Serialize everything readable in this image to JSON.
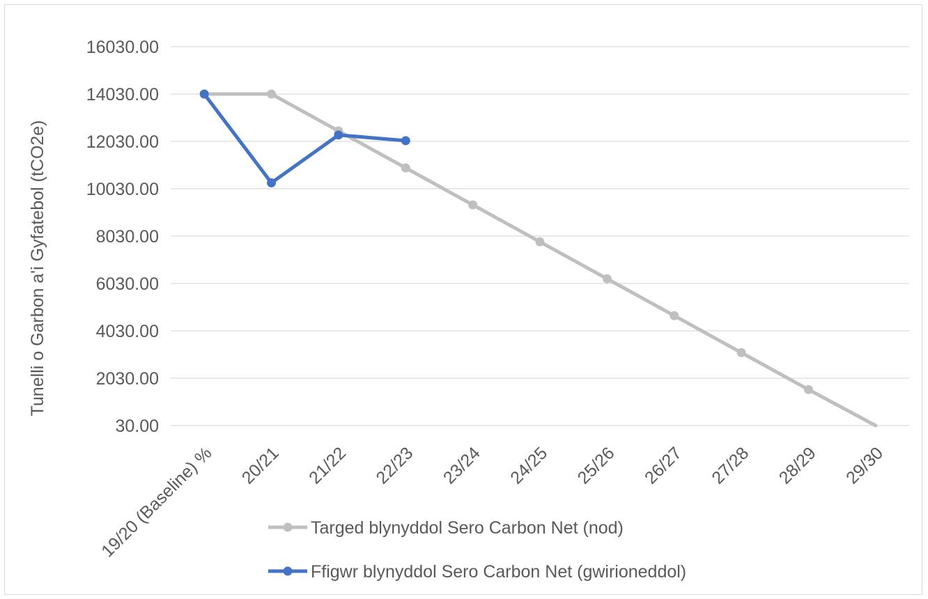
{
  "chart_data": {
    "type": "line",
    "ylabel": "Tunelli o Garbon a'i Gyfatebol (tCO2e)",
    "xlabel": "",
    "categories": [
      "19/20 (Baseline) %",
      "20/21",
      "21/22",
      "22/23",
      "23/24",
      "24/25",
      "25/26",
      "26/27",
      "27/28",
      "28/29",
      "29/30"
    ],
    "yticks": [
      "30.00",
      "2030.00",
      "4030.00",
      "6030.00",
      "8030.00",
      "10030.00",
      "12030.00",
      "14030.00",
      "16030.00"
    ],
    "ylim": [
      30,
      16030
    ],
    "grid": true,
    "legend_position": "bottom",
    "series": [
      {
        "name": "Targed blynyddol Sero Carbon Net (nod)",
        "color": "#bfbfbf",
        "values": [
          14030,
          14030,
          12470,
          10910,
          9350,
          7790,
          6230,
          4670,
          3110,
          1550,
          30
        ]
      },
      {
        "name": "Ffigwr blynyddol Sero Carbon Net (gwirioneddol)",
        "color": "#4472c4",
        "values": [
          14030,
          10280,
          12300,
          12060,
          null,
          null,
          null,
          null,
          null,
          null,
          null
        ]
      }
    ]
  }
}
